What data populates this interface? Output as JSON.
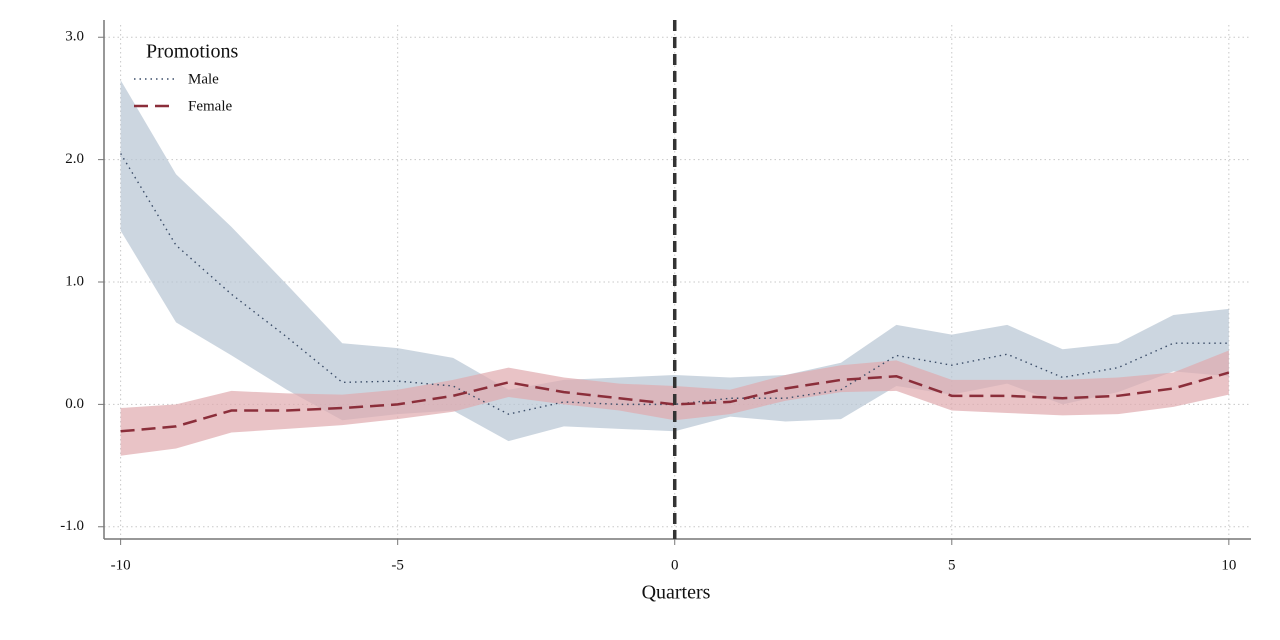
{
  "chart_data": {
    "type": "line_ci",
    "x_label": "Quarters",
    "legend_title": "Promotions",
    "legend_position": "upper left",
    "grid": true,
    "vline": 0,
    "x": [
      -10,
      -9,
      -8,
      -7,
      -6,
      -5,
      -4,
      -3,
      -2,
      -1,
      0,
      1,
      2,
      3,
      4,
      5,
      6,
      7,
      8,
      9,
      10
    ],
    "xlim": [
      -10.3,
      10.4
    ],
    "xticks": [
      -10,
      -5,
      0,
      5,
      10
    ],
    "ylim": [
      -1.1,
      3.1
    ],
    "yticks": [
      {
        "value": -1,
        "label": "-1.0"
      },
      {
        "value": 0,
        "label": "0.0"
      },
      {
        "value": 1,
        "label": "1.0"
      },
      {
        "value": 2,
        "label": "2.0"
      },
      {
        "value": 3,
        "label": "3.0"
      }
    ],
    "series": [
      {
        "name": "Male",
        "color": "#3b4d68",
        "band_color": "#b7c4d3",
        "dash": "1.5 4",
        "values": [
          2.05,
          1.3,
          0.9,
          0.55,
          0.18,
          0.19,
          0.15,
          -0.08,
          0.02,
          0.0,
          0.0,
          0.05,
          0.05,
          0.12,
          0.4,
          0.32,
          0.41,
          0.22,
          0.3,
          0.5,
          0.5
        ],
        "upper": [
          2.65,
          1.88,
          1.45,
          0.98,
          0.5,
          0.46,
          0.38,
          0.12,
          0.2,
          0.22,
          0.24,
          0.22,
          0.24,
          0.34,
          0.65,
          0.57,
          0.65,
          0.45,
          0.5,
          0.73,
          0.78
        ],
        "lower": [
          1.42,
          0.67,
          0.4,
          0.12,
          -0.13,
          -0.08,
          -0.05,
          -0.3,
          -0.18,
          -0.2,
          -0.22,
          -0.1,
          -0.14,
          -0.12,
          0.15,
          0.08,
          0.17,
          0.0,
          0.1,
          0.27,
          0.23
        ]
      },
      {
        "name": "Female",
        "color": "#8b2e3a",
        "band_color": "#dfa9ae",
        "dash": "14 7",
        "values": [
          -0.22,
          -0.18,
          -0.05,
          -0.05,
          -0.03,
          0.0,
          0.07,
          0.18,
          0.1,
          0.05,
          0.0,
          0.02,
          0.13,
          0.2,
          0.23,
          0.07,
          0.07,
          0.05,
          0.07,
          0.13,
          0.26
        ],
        "upper": [
          -0.03,
          0.0,
          0.11,
          0.09,
          0.08,
          0.12,
          0.2,
          0.3,
          0.22,
          0.17,
          0.15,
          0.12,
          0.24,
          0.32,
          0.36,
          0.2,
          0.2,
          0.2,
          0.22,
          0.26,
          0.44
        ],
        "lower": [
          -0.42,
          -0.36,
          -0.23,
          -0.2,
          -0.17,
          -0.12,
          -0.06,
          0.06,
          0.0,
          -0.05,
          -0.13,
          -0.08,
          0.03,
          0.1,
          0.11,
          -0.05,
          -0.07,
          -0.09,
          -0.08,
          -0.02,
          0.08
        ]
      }
    ]
  }
}
